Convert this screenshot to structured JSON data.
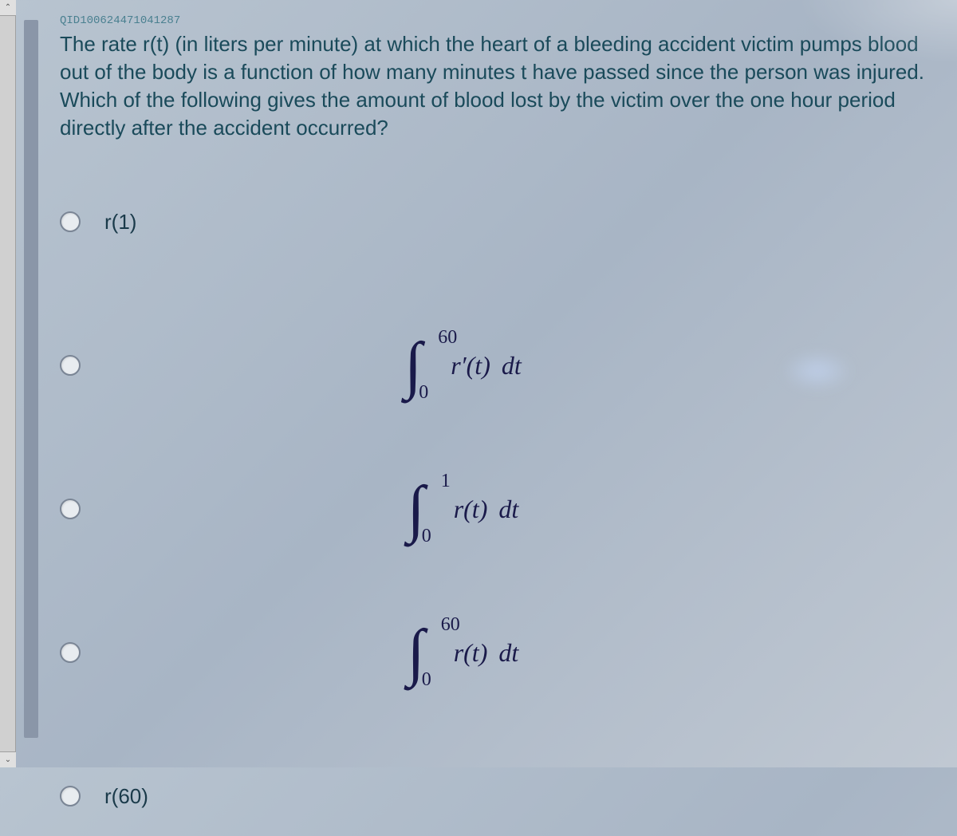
{
  "qid": "QID100624471041287",
  "question_text": "The rate r(t) (in liters per minute) at which the heart of a bleeding accident victim pumps blood out of the body is a function of how many minutes t have passed since the person was injured. Which of the following gives the amount of blood lost by the victim over the one hour period directly after the accident occurred?",
  "colors": {
    "background_gradient_start": "#b8c4d0",
    "background_gradient_end": "#c0c8d2",
    "text_color": "#1a4a5a",
    "qid_color": "#4a8090",
    "radio_border": "#7a8595",
    "math_color": "#1a1a4a",
    "progress_bar": "#8a96a8"
  },
  "typography": {
    "question_fontsize": 26,
    "qid_fontsize": 14,
    "option_fontsize": 26,
    "integrand_fontsize": 32,
    "integral_symbol_fontsize": 80,
    "limit_fontsize": 24
  },
  "options": [
    {
      "type": "text",
      "label": "r(1)"
    },
    {
      "type": "integral",
      "lower": "0",
      "upper": "60",
      "integrand": "r′(t)",
      "differential": "dt"
    },
    {
      "type": "integral",
      "lower": "0",
      "upper": "1",
      "integrand": "r(t)",
      "differential": "dt"
    },
    {
      "type": "integral",
      "lower": "0",
      "upper": "60",
      "integrand": "r(t)",
      "differential": "dt"
    },
    {
      "type": "text",
      "label": "r(60)"
    }
  ]
}
